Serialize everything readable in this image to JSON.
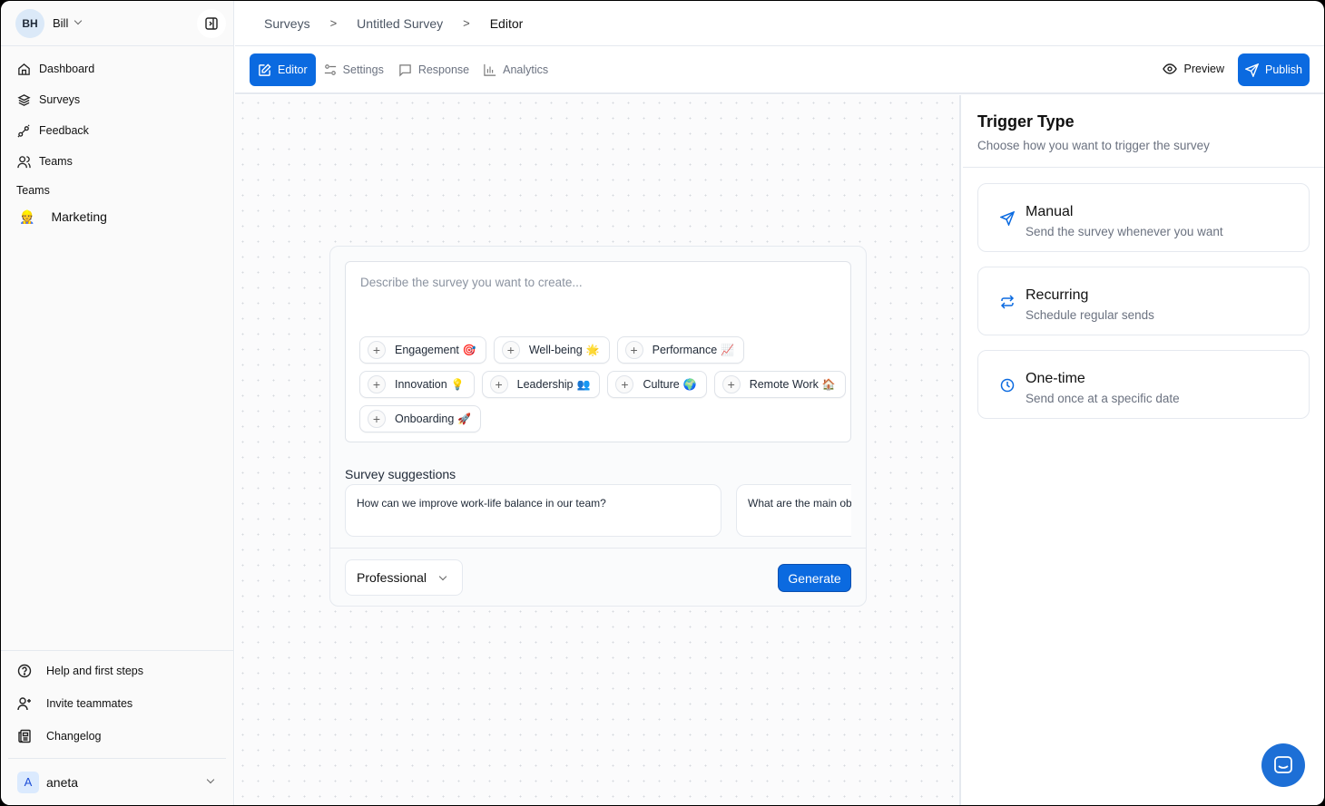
{
  "user": {
    "initials": "BH",
    "name": "Bill"
  },
  "sidebar": {
    "items": [
      {
        "label": "Dashboard",
        "icon": "home-icon"
      },
      {
        "label": "Surveys",
        "icon": "layers-icon"
      },
      {
        "label": "Feedback",
        "icon": "feedback-icon"
      },
      {
        "label": "Teams",
        "icon": "users-icon"
      }
    ],
    "teams_label": "Teams",
    "teams": [
      {
        "label": "Marketing",
        "emoji": "👷"
      }
    ],
    "bottom": [
      {
        "label": "Help and first steps",
        "icon": "help-icon"
      },
      {
        "label": "Invite teammates",
        "icon": "user-plus-icon"
      },
      {
        "label": "Changelog",
        "icon": "newspaper-icon"
      }
    ],
    "workspace": {
      "initial": "A",
      "name": "aneta"
    }
  },
  "breadcrumb": [
    "Surveys",
    "Untitled Survey",
    "Editor"
  ],
  "tabs": [
    {
      "label": "Editor",
      "active": true
    },
    {
      "label": "Settings"
    },
    {
      "label": "Response"
    },
    {
      "label": "Analytics"
    }
  ],
  "actions": {
    "preview": "Preview",
    "publish": "Publish"
  },
  "colors": {
    "accent": "#0b6ae0"
  },
  "editor": {
    "placeholder": "Describe the survey you want to create...",
    "chips": [
      {
        "label": "Engagement",
        "emoji": "🎯"
      },
      {
        "label": "Well-being",
        "emoji": "🌟"
      },
      {
        "label": "Performance",
        "emoji": "📈"
      },
      {
        "label": "Innovation",
        "emoji": "💡"
      },
      {
        "label": "Leadership",
        "emoji": "👥"
      },
      {
        "label": "Culture",
        "emoji": "🌍"
      },
      {
        "label": "Remote Work",
        "emoji": "🏠"
      },
      {
        "label": "Onboarding",
        "emoji": "🚀"
      }
    ],
    "suggestions_title": "Survey suggestions",
    "suggestions": [
      "How can we improve work-life balance in our team?",
      "What are the main ob"
    ],
    "tone": "Professional",
    "generate": "Generate"
  },
  "trigger": {
    "title": "Trigger Type",
    "subtitle": "Choose how you want to trigger the survey",
    "options": [
      {
        "title": "Manual",
        "desc": "Send the survey whenever you want",
        "icon": "send-icon"
      },
      {
        "title": "Recurring",
        "desc": "Schedule regular sends",
        "icon": "repeat-icon"
      },
      {
        "title": "One-time",
        "desc": "Send once at a specific date",
        "icon": "clock-icon"
      }
    ]
  }
}
